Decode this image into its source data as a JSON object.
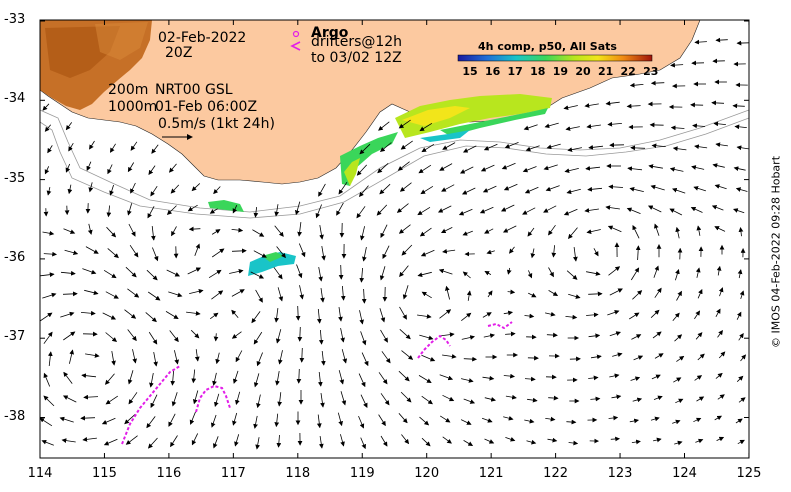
{
  "map": {
    "date_line1": "02-Feb-2022",
    "date_line2": "20Z",
    "depth_line1": "200m",
    "depth_line2": "1000m",
    "product_line1": "NRT00 GSL",
    "product_line2": "01-Feb 06:00Z",
    "scale_label": "0.5m/s (1kt 24h)",
    "argo_label": "Argo",
    "drifters_line1": "drifters@12h",
    "drifters_line2": "to 03/02 12Z",
    "credit": "© IMOS 04-Feb-2022 09:28 Hobart",
    "colorbar": {
      "title": "4h comp, p50, All Sats",
      "ticks": [
        "15",
        "16",
        "17",
        "18",
        "19",
        "20",
        "21",
        "22",
        "23"
      ]
    },
    "x_axis": {
      "ticks": [
        "114",
        "115",
        "116",
        "117",
        "118",
        "119",
        "120",
        "121",
        "122",
        "123",
        "124",
        "125"
      ]
    },
    "y_axis": {
      "ticks": [
        "-33",
        "-34",
        "-35",
        "-36",
        "-37",
        "-38"
      ]
    },
    "colors": {
      "land": "#fcc9a0",
      "drifter": "#e21ee8",
      "hot_land": "#c0661a"
    }
  }
}
